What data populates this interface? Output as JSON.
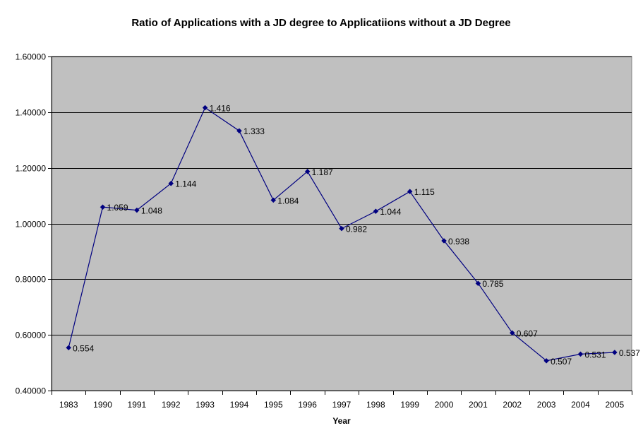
{
  "chart_data": {
    "type": "line",
    "title": "Ratio of Applications with a JD degree to Applicatiions without a JD Degree",
    "xlabel": "Year",
    "ylabel": "",
    "categories": [
      "1983",
      "1990",
      "1991",
      "1992",
      "1993",
      "1994",
      "1995",
      "1996",
      "1997",
      "1998",
      "1999",
      "2000",
      "2001",
      "2002",
      "2003",
      "2004",
      "2005"
    ],
    "series": [
      {
        "values": [
          0.554,
          1.059,
          1.048,
          1.144,
          1.416,
          1.333,
          1.084,
          1.187,
          0.982,
          1.044,
          1.115,
          0.938,
          0.785,
          0.607,
          0.507,
          0.531,
          0.537
        ],
        "data_labels": [
          "0.554",
          "1.059",
          "1.048",
          "1.144",
          "1.416",
          "1.333",
          "1.084",
          "1.187",
          "0.982",
          "1.044",
          "1.115",
          "0.938",
          "0.785",
          "0.607",
          "0.507",
          "0.531",
          "0.537"
        ]
      }
    ],
    "ylim": [
      0.4,
      1.6
    ],
    "y_ticks": [
      0.4,
      0.6,
      0.8,
      1.0,
      1.2,
      1.4,
      1.6
    ],
    "y_tick_labels": [
      "0.40000",
      "0.60000",
      "0.80000",
      "1.00000",
      "1.20000",
      "1.40000",
      "1.60000"
    ],
    "grid": true,
    "legend": "none",
    "colors": {
      "plot_background": "#c0c0c0",
      "line": "#000080",
      "marker": "#000080",
      "gridline": "#000000",
      "page_background": "#ffffff"
    }
  }
}
